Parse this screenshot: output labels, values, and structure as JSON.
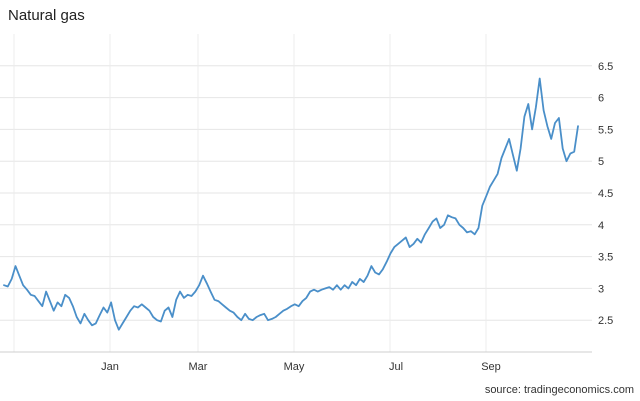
{
  "chart_data": {
    "type": "line",
    "title": "Natural gas",
    "source": "source: tradingeconomics.com",
    "xlabel": "",
    "ylabel": "",
    "x_ticks": [
      "Jan",
      "Mar",
      "May",
      "Jul",
      "Sep"
    ],
    "y_ticks": [
      "2.5",
      "3",
      "3.5",
      "4",
      "4.5",
      "5",
      "5.5",
      "6",
      "6.5"
    ],
    "ylim": [
      2.0,
      7.0
    ],
    "grid": true,
    "series_color": "#4a8fc9",
    "series": [
      {
        "values": [
          3.05,
          3.03,
          3.15,
          3.35,
          3.2,
          3.05,
          2.98,
          2.9,
          2.88,
          2.8,
          2.72,
          2.95,
          2.8,
          2.65,
          2.78,
          2.72,
          2.9,
          2.85,
          2.72,
          2.55,
          2.45,
          2.6,
          2.5,
          2.42,
          2.45,
          2.58,
          2.7,
          2.62,
          2.78,
          2.5,
          2.35,
          2.45,
          2.55,
          2.65,
          2.72,
          2.7,
          2.75,
          2.7,
          2.65,
          2.55,
          2.5,
          2.48,
          2.65,
          2.7,
          2.55,
          2.82,
          2.95,
          2.85,
          2.9,
          2.88,
          2.95,
          3.05,
          3.2,
          3.08,
          2.95,
          2.82,
          2.8,
          2.75,
          2.7,
          2.65,
          2.62,
          2.55,
          2.5,
          2.6,
          2.52,
          2.5,
          2.55,
          2.58,
          2.6,
          2.5,
          2.52,
          2.55,
          2.6,
          2.65,
          2.68,
          2.72,
          2.75,
          2.72,
          2.8,
          2.85,
          2.95,
          2.98,
          2.95,
          2.98,
          3.0,
          3.02,
          2.98,
          3.05,
          2.98,
          3.05,
          3.0,
          3.1,
          3.05,
          3.15,
          3.1,
          3.2,
          3.35,
          3.25,
          3.22,
          3.3,
          3.42,
          3.55,
          3.65,
          3.7,
          3.75,
          3.8,
          3.65,
          3.7,
          3.78,
          3.72,
          3.85,
          3.95,
          4.05,
          4.1,
          3.95,
          4.0,
          4.15,
          4.12,
          4.1,
          4.0,
          3.95,
          3.88,
          3.9,
          3.85,
          3.95,
          4.3,
          4.45,
          4.6,
          4.7,
          4.8,
          5.05,
          5.2,
          5.35,
          5.1,
          4.85,
          5.2,
          5.7,
          5.9,
          5.5,
          5.85,
          6.3,
          5.8,
          5.55,
          5.35,
          5.6,
          5.68,
          5.2,
          5.0,
          5.12,
          5.15,
          5.55
        ]
      }
    ]
  }
}
